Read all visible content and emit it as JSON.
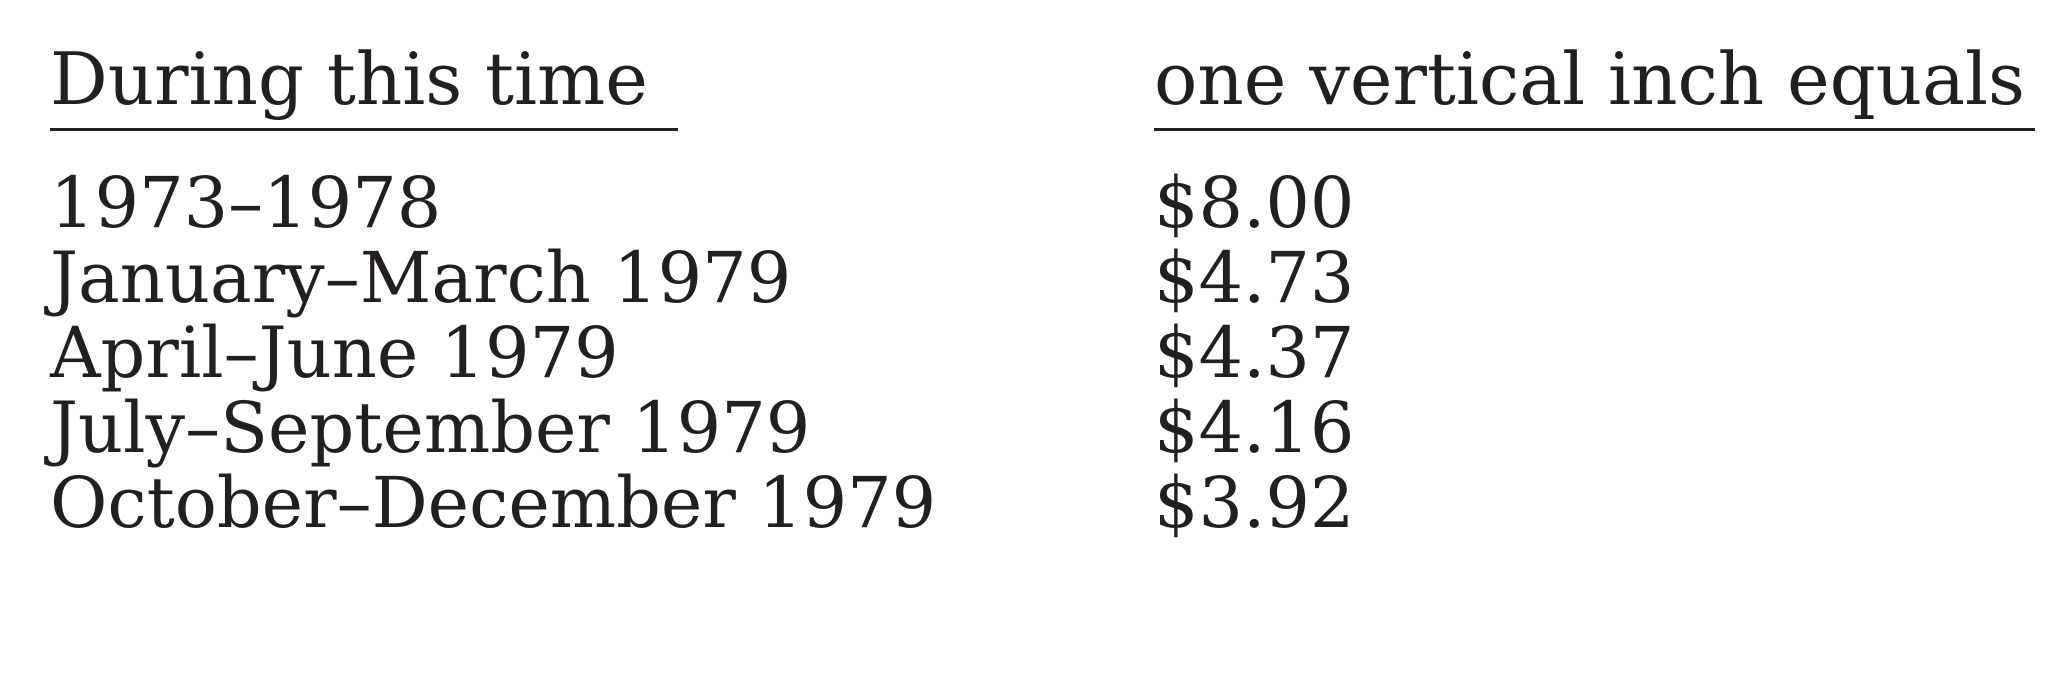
{
  "table": {
    "headers": {
      "period": "During this time",
      "value": "one vertical inch equals"
    },
    "rows": [
      {
        "period": "1973–1978",
        "value": "$8.00"
      },
      {
        "period": "January–March 1979",
        "value": "$4.73"
      },
      {
        "period": "April–June 1979",
        "value": "$4.37"
      },
      {
        "period": "July–September 1979",
        "value": "$4.16"
      },
      {
        "period": "October–December 1979",
        "value": "$3.92"
      }
    ]
  }
}
